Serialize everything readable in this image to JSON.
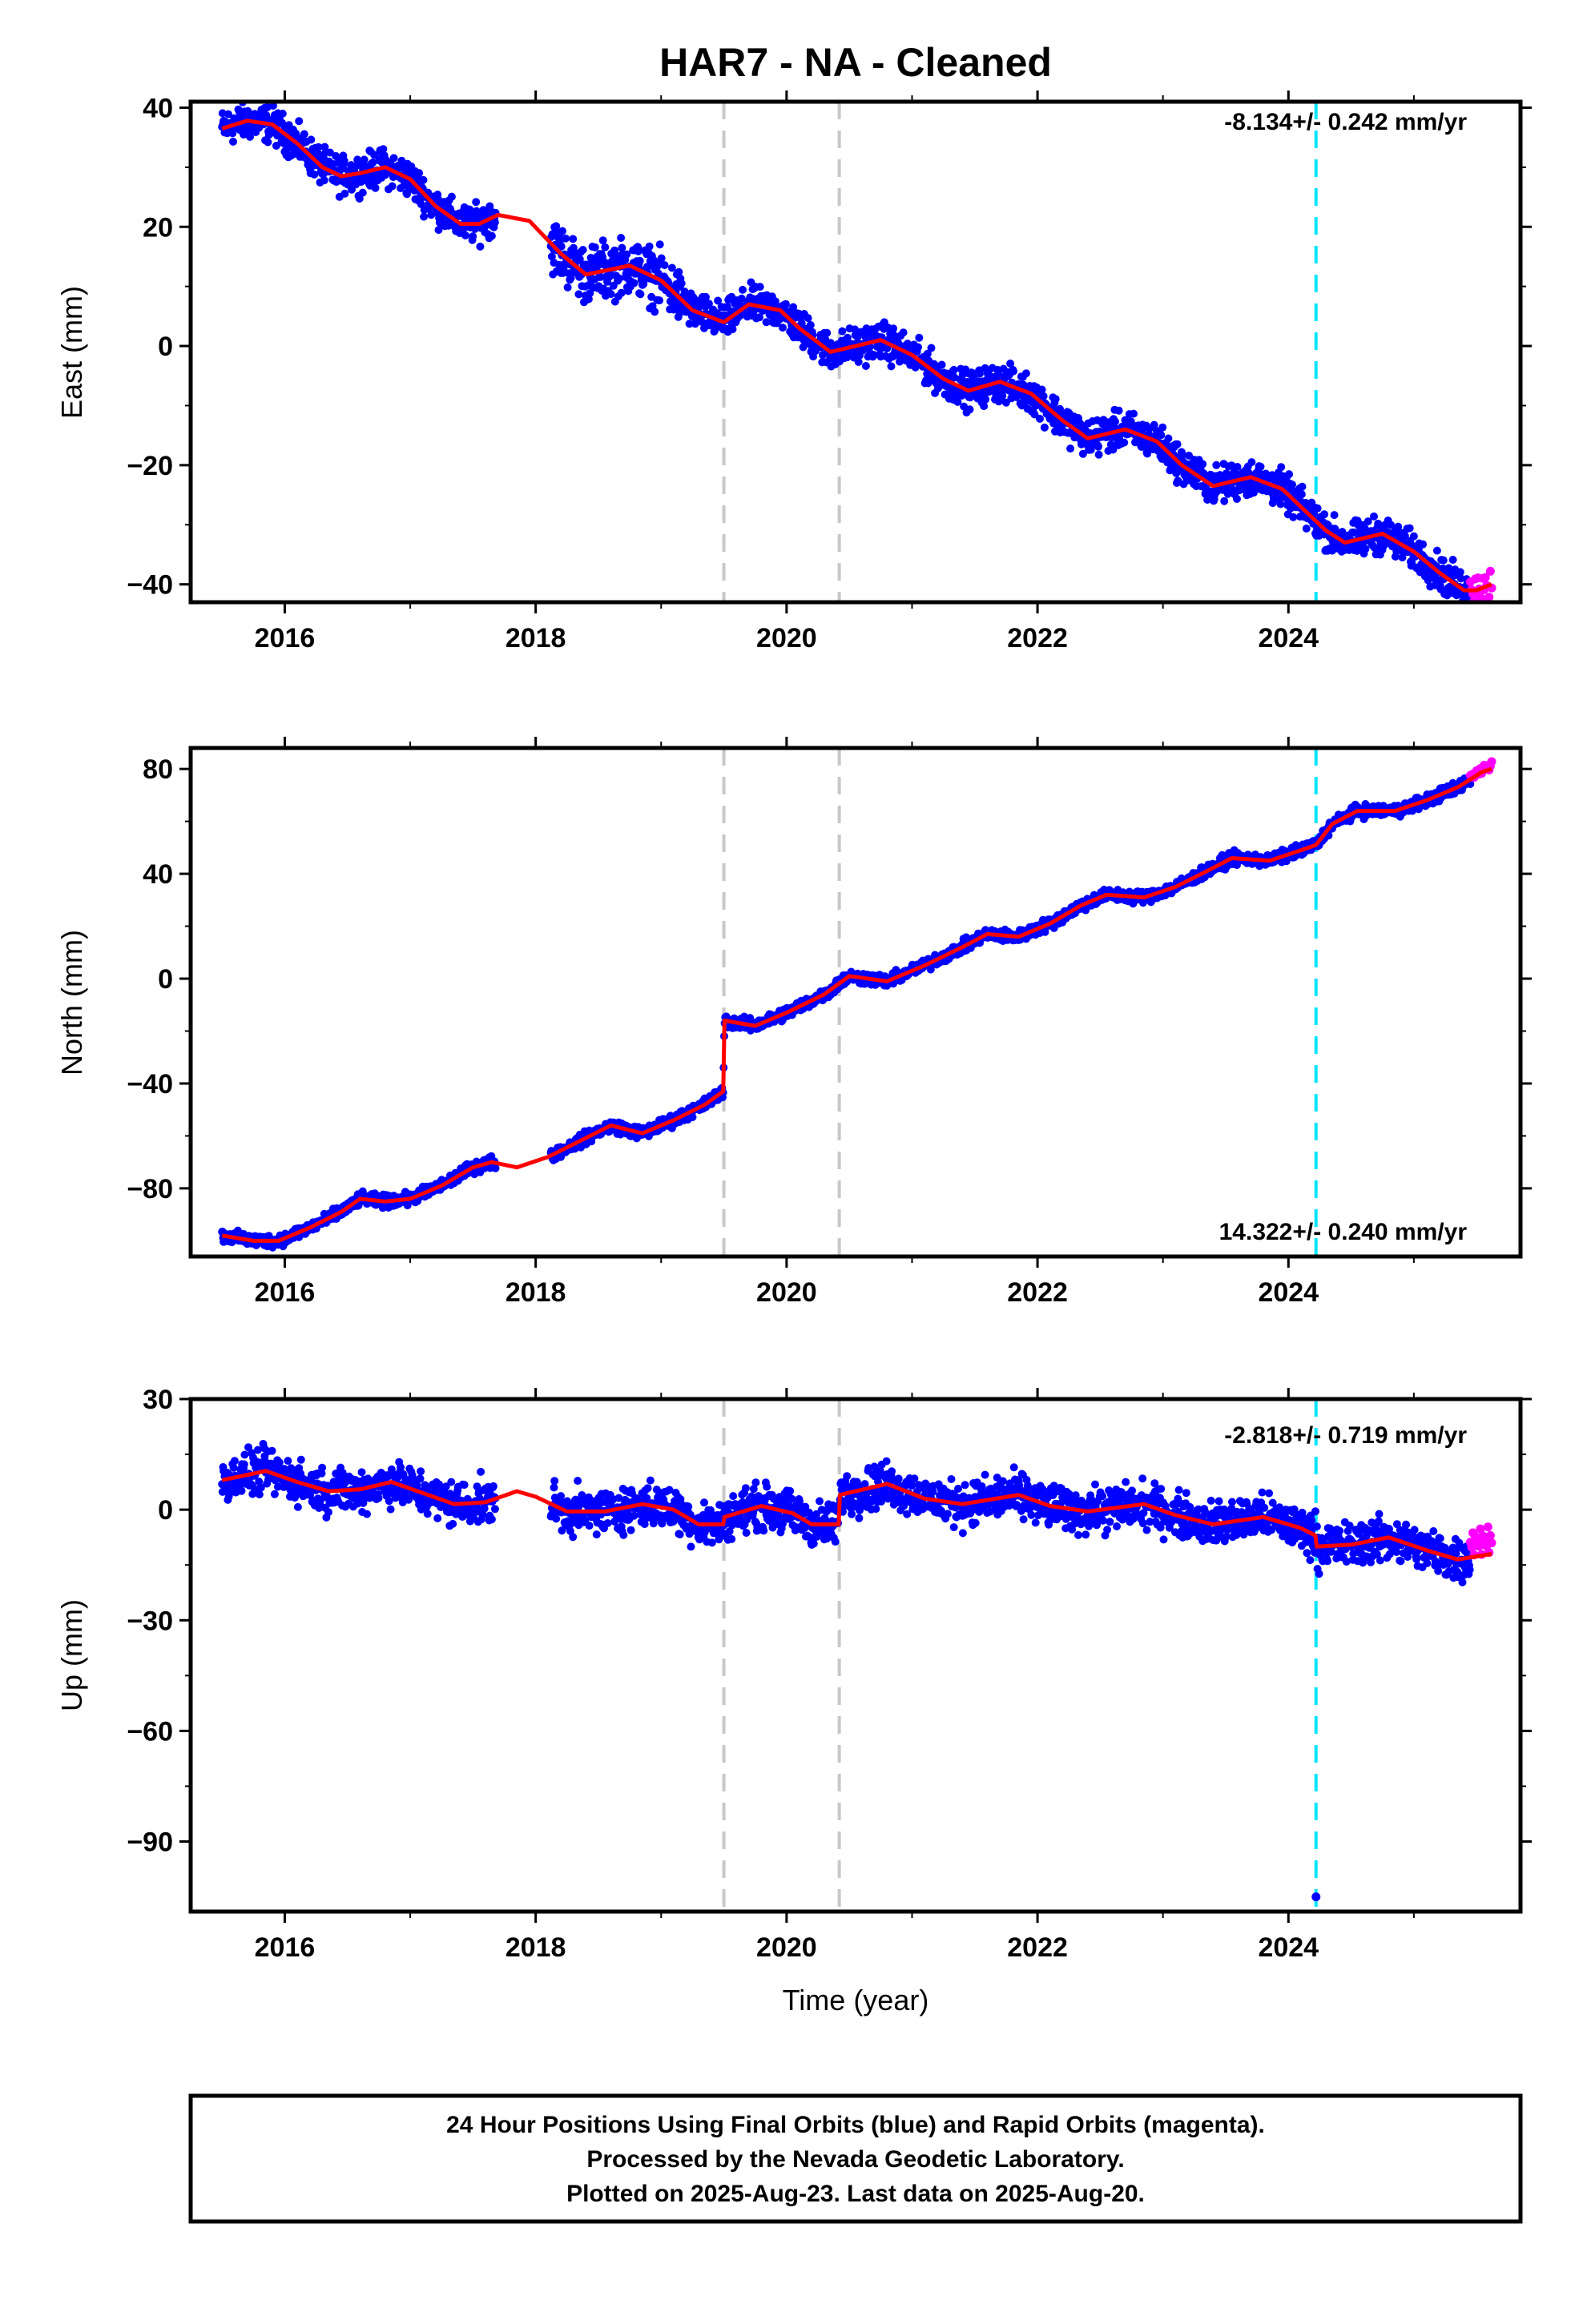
{
  "title": "HAR7  - NA - Cleaned",
  "xlabel": "Time (year)",
  "colors": {
    "final": "#0000ff",
    "rapid": "#ff00ff",
    "model": "#ff0000",
    "equipment": "#c8c8c8",
    "earthquake": "#00e5ff"
  },
  "chart_data": [
    {
      "type": "scatter",
      "component": "east",
      "ylabel": "East (mm)",
      "rate_label": "-8.134+/- 0.242 mm/yr",
      "xlim": [
        2015.25,
        2025.85
      ],
      "ylim": [
        -43,
        41
      ],
      "yticks": [
        -40,
        -20,
        0,
        20,
        40
      ],
      "xticks": [
        2016,
        2018,
        2020,
        2022,
        2024
      ],
      "steps": [
        2019.5,
        2020.42
      ],
      "earthquake": 2024.22,
      "final_range": [
        2015.5,
        2025.45
      ],
      "rapid_range": [
        2025.45,
        2025.62
      ],
      "gaps": [
        [
          2017.68,
          2018.12
        ]
      ],
      "model": [
        {
          "x": 2015.5,
          "y": 36.5
        },
        {
          "x": 2015.7,
          "y": 37.8
        },
        {
          "x": 2015.9,
          "y": 37.2
        },
        {
          "x": 2016.1,
          "y": 34.0
        },
        {
          "x": 2016.3,
          "y": 30.0
        },
        {
          "x": 2016.45,
          "y": 28.5
        },
        {
          "x": 2016.6,
          "y": 29.0
        },
        {
          "x": 2016.8,
          "y": 30.0
        },
        {
          "x": 2017.0,
          "y": 28.0
        },
        {
          "x": 2017.2,
          "y": 23.5
        },
        {
          "x": 2017.4,
          "y": 20.5
        },
        {
          "x": 2017.55,
          "y": 20.5
        },
        {
          "x": 2017.7,
          "y": 22.0
        },
        {
          "x": 2017.95,
          "y": 21.0
        },
        {
          "x": 2018.2,
          "y": 15.5
        },
        {
          "x": 2018.4,
          "y": 12.0
        },
        {
          "x": 2018.75,
          "y": 13.5
        },
        {
          "x": 2019.0,
          "y": 11.0
        },
        {
          "x": 2019.25,
          "y": 6.0
        },
        {
          "x": 2019.5,
          "y": 4.0
        },
        {
          "x": 2019.7,
          "y": 7.0
        },
        {
          "x": 2019.95,
          "y": 6.0
        },
        {
          "x": 2020.1,
          "y": 3.0
        },
        {
          "x": 2020.35,
          "y": -1.0
        },
        {
          "x": 2020.55,
          "y": 0.0
        },
        {
          "x": 2020.75,
          "y": 1.0
        },
        {
          "x": 2021.0,
          "y": -1.5
        },
        {
          "x": 2021.25,
          "y": -5.5
        },
        {
          "x": 2021.45,
          "y": -7.5
        },
        {
          "x": 2021.7,
          "y": -6.0
        },
        {
          "x": 2021.95,
          "y": -8.0
        },
        {
          "x": 2022.2,
          "y": -12.5
        },
        {
          "x": 2022.4,
          "y": -15.5
        },
        {
          "x": 2022.7,
          "y": -14.0
        },
        {
          "x": 2022.95,
          "y": -16.0
        },
        {
          "x": 2023.15,
          "y": -20.0
        },
        {
          "x": 2023.4,
          "y": -23.5
        },
        {
          "x": 2023.7,
          "y": -22.0
        },
        {
          "x": 2023.95,
          "y": -24.0
        },
        {
          "x": 2024.15,
          "y": -28.0
        },
        {
          "x": 2024.3,
          "y": -31.0
        },
        {
          "x": 2024.45,
          "y": -33.0
        },
        {
          "x": 2024.75,
          "y": -31.5
        },
        {
          "x": 2025.0,
          "y": -34.5
        },
        {
          "x": 2025.2,
          "y": -38.0
        },
        {
          "x": 2025.4,
          "y": -41.0
        },
        {
          "x": 2025.5,
          "y": -41.0
        },
        {
          "x": 2025.62,
          "y": -40.0
        }
      ]
    },
    {
      "type": "scatter",
      "component": "north",
      "ylabel": "North (mm)",
      "rate_label": "14.322+/- 0.240 mm/yr",
      "xlim": [
        2015.25,
        2025.85
      ],
      "ylim": [
        -106,
        88
      ],
      "yticks": [
        -80,
        -40,
        0,
        40,
        80
      ],
      "xticks": [
        2016,
        2018,
        2020,
        2022,
        2024
      ],
      "steps": [
        2019.5,
        2020.42
      ],
      "earthquake": 2024.22,
      "final_range": [
        2015.5,
        2025.45
      ],
      "rapid_range": [
        2025.45,
        2025.62
      ],
      "gaps": [
        [
          2017.68,
          2018.12
        ]
      ],
      "model": [
        {
          "x": 2015.5,
          "y": -98
        },
        {
          "x": 2015.75,
          "y": -100
        },
        {
          "x": 2015.95,
          "y": -100
        },
        {
          "x": 2016.2,
          "y": -95
        },
        {
          "x": 2016.45,
          "y": -89
        },
        {
          "x": 2016.6,
          "y": -84
        },
        {
          "x": 2016.8,
          "y": -85
        },
        {
          "x": 2017.0,
          "y": -84
        },
        {
          "x": 2017.25,
          "y": -79
        },
        {
          "x": 2017.5,
          "y": -72
        },
        {
          "x": 2017.65,
          "y": -70
        },
        {
          "x": 2017.85,
          "y": -72
        },
        {
          "x": 2018.1,
          "y": -68
        },
        {
          "x": 2018.35,
          "y": -62
        },
        {
          "x": 2018.6,
          "y": -56
        },
        {
          "x": 2018.85,
          "y": -59
        },
        {
          "x": 2019.1,
          "y": -54
        },
        {
          "x": 2019.35,
          "y": -48
        },
        {
          "x": 2019.495,
          "y": -43
        },
        {
          "x": 2019.505,
          "y": -16
        },
        {
          "x": 2019.75,
          "y": -18
        },
        {
          "x": 2020.0,
          "y": -13
        },
        {
          "x": 2020.3,
          "y": -6
        },
        {
          "x": 2020.5,
          "y": 1
        },
        {
          "x": 2020.8,
          "y": -1
        },
        {
          "x": 2021.1,
          "y": 5
        },
        {
          "x": 2021.4,
          "y": 12
        },
        {
          "x": 2021.6,
          "y": 17
        },
        {
          "x": 2021.85,
          "y": 16
        },
        {
          "x": 2022.1,
          "y": 21
        },
        {
          "x": 2022.35,
          "y": 28
        },
        {
          "x": 2022.55,
          "y": 32
        },
        {
          "x": 2022.85,
          "y": 31
        },
        {
          "x": 2023.1,
          "y": 35
        },
        {
          "x": 2023.35,
          "y": 41
        },
        {
          "x": 2023.55,
          "y": 46
        },
        {
          "x": 2023.85,
          "y": 45
        },
        {
          "x": 2024.1,
          "y": 49
        },
        {
          "x": 2024.22,
          "y": 51
        },
        {
          "x": 2024.35,
          "y": 59
        },
        {
          "x": 2024.55,
          "y": 64
        },
        {
          "x": 2024.85,
          "y": 64
        },
        {
          "x": 2025.1,
          "y": 68
        },
        {
          "x": 2025.35,
          "y": 73
        },
        {
          "x": 2025.55,
          "y": 79
        },
        {
          "x": 2025.62,
          "y": 80
        }
      ]
    },
    {
      "type": "scatter",
      "component": "up",
      "ylabel": "Up (mm)",
      "rate_label": "-2.818+/- 0.719 mm/yr",
      "xlim": [
        2015.25,
        2025.85
      ],
      "ylim": [
        -109,
        30
      ],
      "yticks": [
        -90,
        -60,
        -30,
        0,
        30
      ],
      "xticks": [
        2016,
        2018,
        2020,
        2022,
        2024
      ],
      "steps": [
        2019.5,
        2020.42
      ],
      "earthquake": 2024.22,
      "final_range": [
        2015.5,
        2025.45
      ],
      "rapid_range": [
        2025.45,
        2025.62
      ],
      "gaps": [
        [
          2017.68,
          2018.12
        ]
      ],
      "outlier": {
        "x": 2024.22,
        "y": -105
      },
      "model": [
        {
          "x": 2015.5,
          "y": 8
        },
        {
          "x": 2015.85,
          "y": 10.5
        },
        {
          "x": 2016.1,
          "y": 7.5
        },
        {
          "x": 2016.35,
          "y": 5
        },
        {
          "x": 2016.6,
          "y": 5.5
        },
        {
          "x": 2016.85,
          "y": 7.5
        },
        {
          "x": 2017.1,
          "y": 4.5
        },
        {
          "x": 2017.35,
          "y": 1.5
        },
        {
          "x": 2017.6,
          "y": 2
        },
        {
          "x": 2017.85,
          "y": 5
        },
        {
          "x": 2018.0,
          "y": 3.5
        },
        {
          "x": 2018.25,
          "y": -0.5
        },
        {
          "x": 2018.55,
          "y": -0.5
        },
        {
          "x": 2018.85,
          "y": 1.5
        },
        {
          "x": 2019.1,
          "y": 0
        },
        {
          "x": 2019.3,
          "y": -4
        },
        {
          "x": 2019.495,
          "y": -4
        },
        {
          "x": 2019.505,
          "y": -2
        },
        {
          "x": 2019.8,
          "y": 1
        },
        {
          "x": 2020.05,
          "y": -1
        },
        {
          "x": 2020.2,
          "y": -4
        },
        {
          "x": 2020.415,
          "y": -4
        },
        {
          "x": 2020.425,
          "y": 4
        },
        {
          "x": 2020.8,
          "y": 7
        },
        {
          "x": 2021.1,
          "y": 3
        },
        {
          "x": 2021.4,
          "y": 1.5
        },
        {
          "x": 2021.85,
          "y": 4
        },
        {
          "x": 2022.1,
          "y": 1
        },
        {
          "x": 2022.4,
          "y": -0.5
        },
        {
          "x": 2022.85,
          "y": 1.5
        },
        {
          "x": 2023.1,
          "y": -1.5
        },
        {
          "x": 2023.4,
          "y": -4
        },
        {
          "x": 2023.8,
          "y": -2
        },
        {
          "x": 2024.1,
          "y": -5
        },
        {
          "x": 2024.215,
          "y": -7
        },
        {
          "x": 2024.225,
          "y": -10
        },
        {
          "x": 2024.5,
          "y": -9.5
        },
        {
          "x": 2024.8,
          "y": -7.5
        },
        {
          "x": 2025.1,
          "y": -11
        },
        {
          "x": 2025.35,
          "y": -13.5
        },
        {
          "x": 2025.62,
          "y": -12
        }
      ]
    }
  ],
  "footer": [
    "24 Hour Positions Using Final Orbits (blue) and Rapid Orbits (magenta).",
    "Processed by the Nevada Geodetic Laboratory.",
    "Plotted on 2025-Aug-23. Last data on 2025-Aug-20."
  ]
}
